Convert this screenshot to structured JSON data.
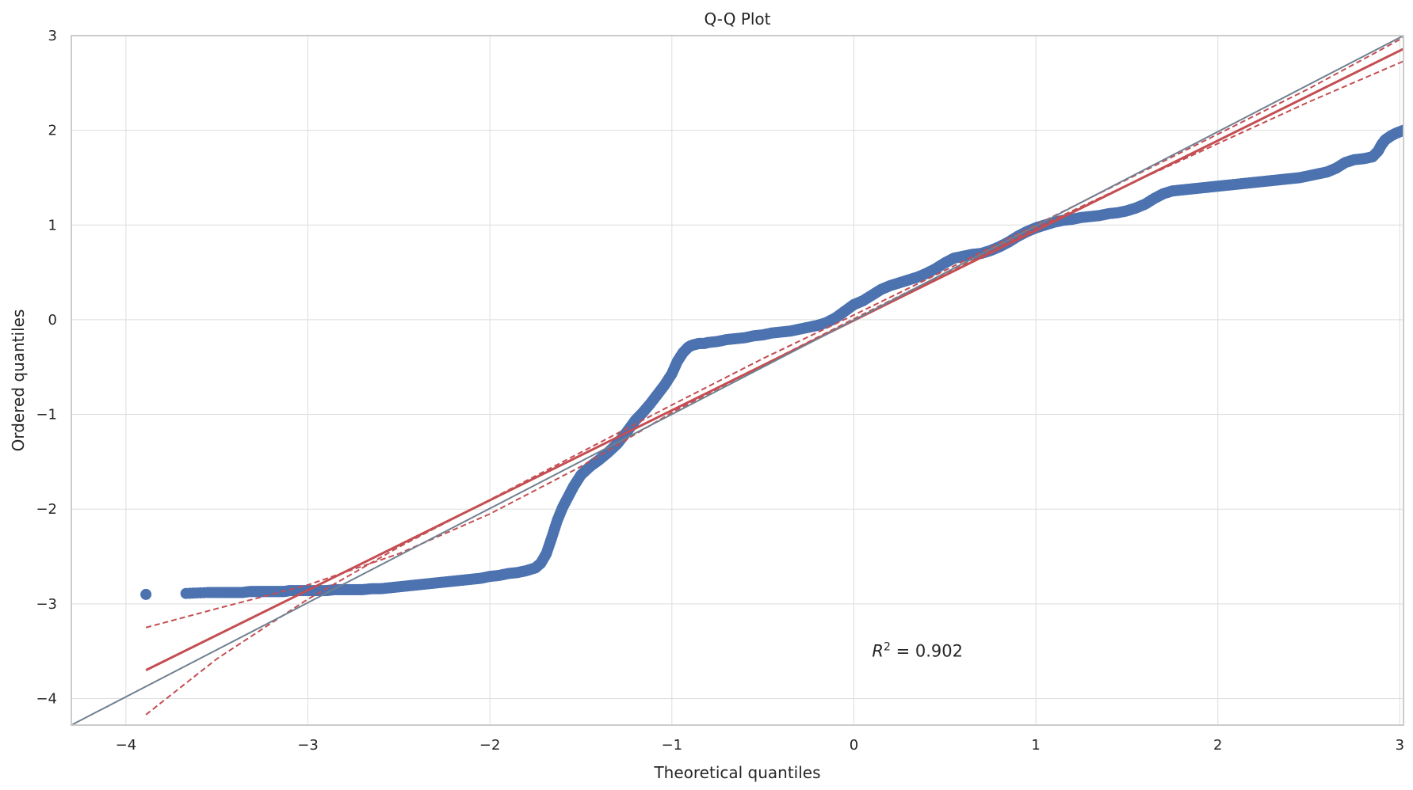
{
  "chart_data": {
    "type": "scatter",
    "title": "Q-Q Plot",
    "xlabel": "Theoretical quantiles",
    "ylabel": "Ordered quantiles",
    "xlim": [
      -4.3,
      3.02
    ],
    "ylim": [
      -4.28,
      3.0
    ],
    "x_ticks": [
      -4,
      -3,
      -2,
      -1,
      0,
      1,
      2,
      3
    ],
    "y_ticks": [
      -4,
      -3,
      -2,
      -1,
      0,
      1,
      2,
      3
    ],
    "x_tick_labels": [
      "−4",
      "−3",
      "−2",
      "−1",
      "0",
      "1",
      "2",
      "3"
    ],
    "y_tick_labels": [
      "−4",
      "−3",
      "−2",
      "−1",
      "0",
      "1",
      "2",
      "3"
    ],
    "grid": true,
    "annotation": {
      "symbol": "R",
      "exponent": "2",
      "text": " = 0.902",
      "x": 0.1,
      "y": -3.5
    },
    "series": [
      {
        "kind": "scatter",
        "color": "#4c72b0",
        "x": [
          -3.89,
          -3.67,
          -3.55,
          -3.47,
          -3.41,
          -3.36,
          -3.32,
          -3.28,
          -3.25,
          -3.22,
          -3.19,
          -3.16,
          -3.13,
          -3.1,
          -3.05,
          -3.0,
          -2.95,
          -2.9,
          -2.85,
          -2.8,
          -2.75,
          -2.7,
          -2.65,
          -2.6,
          -2.55,
          -2.5,
          -2.45,
          -2.4,
          -2.35,
          -2.3,
          -2.25,
          -2.2,
          -2.15,
          -2.1,
          -2.05,
          -2.0,
          -1.95,
          -1.9,
          -1.85,
          -1.8,
          -1.75,
          -1.72,
          -1.69,
          -1.66,
          -1.63,
          -1.6,
          -1.57,
          -1.54,
          -1.5,
          -1.45,
          -1.4,
          -1.35,
          -1.3,
          -1.25,
          -1.2,
          -1.16,
          -1.12,
          -1.08,
          -1.04,
          -1.0,
          -0.97,
          -0.94,
          -0.91,
          -0.89,
          -0.87,
          -0.85,
          -0.82,
          -0.8,
          -0.75,
          -0.7,
          -0.65,
          -0.6,
          -0.55,
          -0.5,
          -0.45,
          -0.4,
          -0.35,
          -0.3,
          -0.25,
          -0.2,
          -0.15,
          -0.1,
          -0.05,
          0.0,
          0.05,
          0.1,
          0.15,
          0.2,
          0.25,
          0.3,
          0.35,
          0.4,
          0.45,
          0.5,
          0.55,
          0.6,
          0.65,
          0.7,
          0.75,
          0.8,
          0.85,
          0.9,
          0.95,
          1.0,
          1.05,
          1.1,
          1.15,
          1.2,
          1.25,
          1.3,
          1.35,
          1.4,
          1.45,
          1.5,
          1.55,
          1.6,
          1.65,
          1.7,
          1.75,
          1.8,
          1.85,
          1.9,
          1.95,
          2.0,
          2.05,
          2.1,
          2.15,
          2.2,
          2.25,
          2.3,
          2.35,
          2.4,
          2.45,
          2.5,
          2.55,
          2.6,
          2.65,
          2.7,
          2.75,
          2.8,
          2.85,
          2.88,
          2.9,
          2.92,
          2.95,
          2.98,
          3.02
        ],
        "y": [
          -2.9,
          -2.89,
          -2.88,
          -2.88,
          -2.88,
          -2.88,
          -2.87,
          -2.87,
          -2.87,
          -2.87,
          -2.87,
          -2.87,
          -2.87,
          -2.86,
          -2.86,
          -2.86,
          -2.86,
          -2.86,
          -2.85,
          -2.85,
          -2.85,
          -2.85,
          -2.84,
          -2.84,
          -2.83,
          -2.82,
          -2.81,
          -2.8,
          -2.79,
          -2.78,
          -2.77,
          -2.76,
          -2.75,
          -2.74,
          -2.73,
          -2.71,
          -2.7,
          -2.68,
          -2.67,
          -2.65,
          -2.62,
          -2.57,
          -2.47,
          -2.3,
          -2.12,
          -1.98,
          -1.87,
          -1.76,
          -1.64,
          -1.55,
          -1.48,
          -1.4,
          -1.31,
          -1.19,
          -1.06,
          -0.98,
          -0.89,
          -0.79,
          -0.69,
          -0.57,
          -0.44,
          -0.35,
          -0.29,
          -0.27,
          -0.26,
          -0.25,
          -0.25,
          -0.24,
          -0.23,
          -0.21,
          -0.2,
          -0.19,
          -0.17,
          -0.16,
          -0.14,
          -0.13,
          -0.12,
          -0.1,
          -0.08,
          -0.06,
          -0.03,
          0.02,
          0.09,
          0.16,
          0.2,
          0.26,
          0.32,
          0.36,
          0.39,
          0.42,
          0.45,
          0.49,
          0.54,
          0.6,
          0.65,
          0.67,
          0.69,
          0.7,
          0.73,
          0.77,
          0.82,
          0.88,
          0.93,
          0.97,
          1.0,
          1.03,
          1.05,
          1.06,
          1.08,
          1.09,
          1.1,
          1.12,
          1.13,
          1.15,
          1.18,
          1.22,
          1.28,
          1.33,
          1.36,
          1.37,
          1.38,
          1.39,
          1.4,
          1.41,
          1.42,
          1.43,
          1.44,
          1.45,
          1.46,
          1.47,
          1.48,
          1.49,
          1.5,
          1.52,
          1.54,
          1.56,
          1.6,
          1.66,
          1.69,
          1.7,
          1.72,
          1.78,
          1.85,
          1.9,
          1.94,
          1.97,
          2.0
        ]
      },
      {
        "kind": "line",
        "name": "",
        "color": "#c44e52",
        "dashed": false,
        "x": [
          -3.89,
          3.02
        ],
        "y": [
          -3.7,
          2.86
        ]
      },
      {
        "kind": "line",
        "name": "",
        "color": "#c44e52",
        "dashed": true,
        "x": [
          -3.89,
          -3.5,
          -3.0,
          -2.5,
          -2.0,
          -1.5,
          -1.0,
          -0.5,
          0.0,
          0.5,
          1.0,
          1.5,
          2.0,
          2.5,
          3.02
        ],
        "y": [
          -3.25,
          -3.05,
          -2.8,
          -2.47,
          -2.05,
          -1.55,
          -0.98,
          -0.48,
          0.01,
          0.49,
          0.97,
          1.42,
          1.86,
          2.3,
          2.73
        ]
      },
      {
        "kind": "line",
        "name": "",
        "color": "#c44e52",
        "dashed": true,
        "x": [
          -3.89,
          -3.5,
          -3.0,
          -2.5,
          -2.0,
          -1.5,
          -1.0,
          -0.5,
          0.0,
          0.5,
          1.0,
          1.5,
          2.0,
          2.5,
          3.02
        ],
        "y": [
          -4.17,
          -3.58,
          -2.95,
          -2.4,
          -1.9,
          -1.4,
          -0.9,
          -0.41,
          0.05,
          0.52,
          1.0,
          1.48,
          1.96,
          2.44,
          2.98
        ]
      },
      {
        "kind": "line",
        "name": "",
        "color": "#708090",
        "dashed": false,
        "x": [
          -4.3,
          3.02
        ],
        "y": [
          -4.28,
          3.0
        ]
      }
    ]
  }
}
